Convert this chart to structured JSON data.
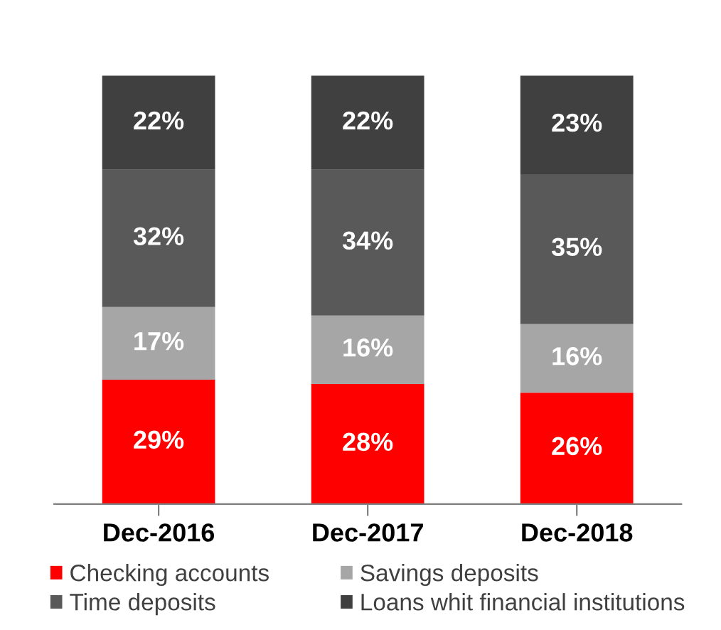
{
  "chart_data": {
    "type": "bar",
    "stacked": true,
    "categories": [
      "Dec-2016",
      "Dec-2017",
      "Dec-2018"
    ],
    "series": [
      {
        "name": "Checking accounts",
        "color": "#ff0000",
        "values": [
          29,
          28,
          26
        ],
        "value_labels": [
          "29%",
          "28%",
          "26%"
        ]
      },
      {
        "name": "Savings deposits",
        "color": "#a6a6a6",
        "values": [
          17,
          16,
          16
        ],
        "value_labels": [
          "17%",
          "16%",
          "16%"
        ]
      },
      {
        "name": "Time deposits",
        "color": "#595959",
        "values": [
          32,
          34,
          35
        ],
        "value_labels": [
          "32%",
          "34%",
          "35%"
        ]
      },
      {
        "name": "Loans whit financial institutions",
        "color": "#404040",
        "values": [
          22,
          22,
          23
        ],
        "value_labels": [
          "22%",
          "22%",
          "23%"
        ]
      }
    ],
    "ylim": [
      0,
      100
    ],
    "tick_labels": "x",
    "legend": "bottom",
    "grid": false
  }
}
